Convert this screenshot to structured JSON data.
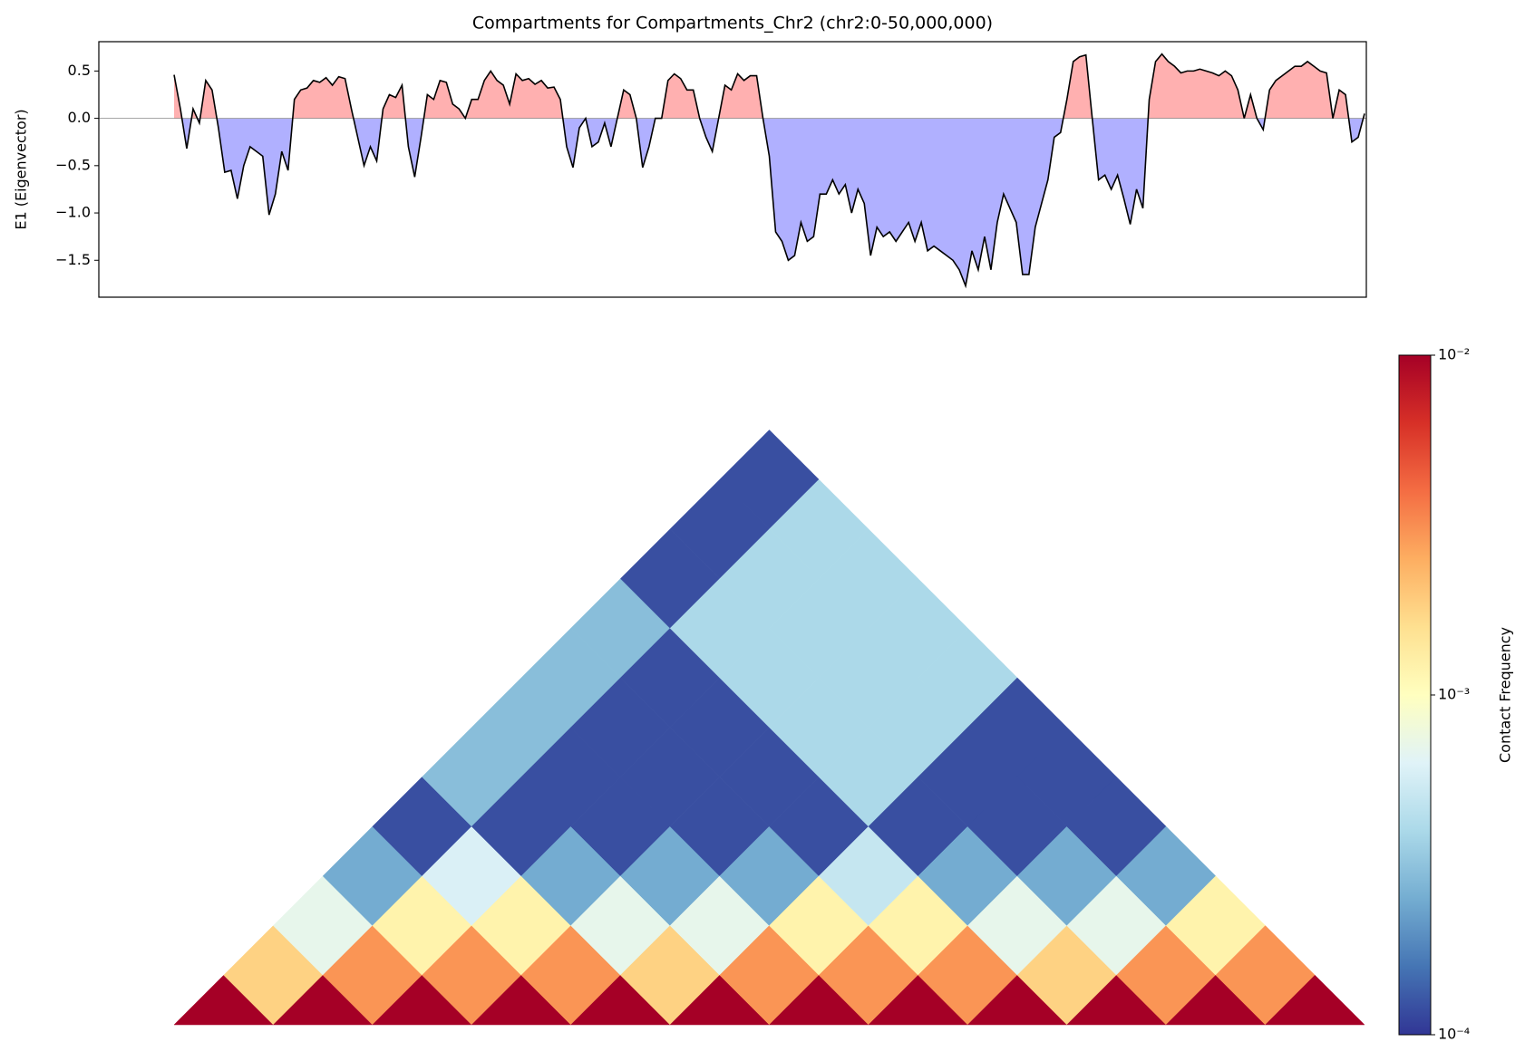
{
  "chart_data": [
    {
      "type": "area",
      "title": "Compartments for Compartments_Chr2 (chr2:0-50,000,000)",
      "y_label": "E1 (Eigenvector)",
      "color": "#000000",
      "pos_color": "#ffb0b0",
      "neg_color": "#b0b0ff",
      "ylim": [
        -1.89,
        0.81
      ],
      "yticks": [
        0.5,
        {
          "value": 0,
          "label": "0.0"
        },
        {
          "value": -0.5,
          "label": "−0.5"
        },
        {
          "value": -1,
          "label": "−1.0"
        },
        {
          "value": -1.5,
          "label": "−1.5"
        }
      ],
      "values": [
        0.46,
        0.1,
        -0.32,
        0.1,
        -0.05,
        0.4,
        0.3,
        -0.1,
        -0.57,
        -0.55,
        -0.85,
        -0.5,
        -0.3,
        -0.35,
        -0.4,
        -1.02,
        -0.8,
        -0.35,
        -0.55,
        0.2,
        0.3,
        0.32,
        0.4,
        0.38,
        0.43,
        0.35,
        0.44,
        0.42,
        0.1,
        -0.2,
        -0.5,
        -0.3,
        -0.45,
        0.1,
        0.25,
        0.22,
        0.35,
        -0.3,
        -0.62,
        -0.2,
        0.25,
        0.2,
        0.4,
        0.38,
        0.15,
        0.1,
        0.0,
        0.2,
        0.2,
        0.4,
        0.5,
        0.4,
        0.35,
        0.15,
        0.47,
        0.4,
        0.42,
        0.36,
        0.4,
        0.32,
        0.33,
        0.2,
        -0.3,
        -0.52,
        -0.1,
        0.0,
        -0.3,
        -0.25,
        -0.05,
        -0.3,
        0.0,
        0.3,
        0.25,
        0.0,
        -0.52,
        -0.3,
        0.0,
        0.0,
        0.4,
        0.47,
        0.42,
        0.3,
        0.3,
        0.0,
        -0.2,
        -0.35,
        0.0,
        0.35,
        0.3,
        0.47,
        0.4,
        0.45,
        0.45,
        0.0,
        -0.4,
        -1.2,
        -1.3,
        -1.5,
        -1.45,
        -1.1,
        -1.3,
        -1.25,
        -0.8,
        -0.8,
        -0.65,
        -0.8,
        -0.7,
        -1.0,
        -0.75,
        -0.9,
        -1.45,
        -1.15,
        -1.25,
        -1.2,
        -1.3,
        -1.2,
        -1.1,
        -1.3,
        -1.1,
        -1.4,
        -1.35,
        -1.4,
        -1.45,
        -1.5,
        -1.6,
        -1.77,
        -1.4,
        -1.6,
        -1.25,
        -1.6,
        -1.1,
        -0.8,
        -0.95,
        -1.1,
        -1.65,
        -1.65,
        -1.15,
        -0.9,
        -0.65,
        -0.2,
        -0.15,
        0.2,
        0.6,
        0.65,
        0.67,
        0.0,
        -0.65,
        -0.6,
        -0.75,
        -0.6,
        -0.85,
        -1.12,
        -0.75,
        -0.95,
        0.2,
        0.6,
        0.68,
        0.6,
        0.55,
        0.48,
        0.5,
        0.5,
        0.52,
        0.5,
        0.48,
        0.45,
        0.5,
        0.45,
        0.3,
        0.0,
        0.25,
        0.0,
        -0.12,
        0.3,
        0.4,
        0.45,
        0.5,
        0.55,
        0.55,
        0.6,
        0.55,
        0.5,
        0.48,
        0.0,
        0.3,
        0.25,
        -0.25,
        -0.2,
        0.05
      ]
    },
    {
      "type": "heatmap",
      "colorbar_label": "Contact Frequency",
      "log": true,
      "zlim": [
        0.0001,
        0.01
      ],
      "zticks": [
        {
          "value": 0.01,
          "label": "10⁻²"
        },
        {
          "value": 0.001,
          "label": "10⁻³"
        },
        {
          "value": 0.0001,
          "label": "10⁻⁴"
        }
      ],
      "colormap": [
        "#313695",
        "#4575b4",
        "#74add1",
        "#abd9e9",
        "#e0f3f8",
        "#ffffbf",
        "#fee090",
        "#fdae61",
        "#f46d43",
        "#d73027",
        "#a50026"
      ],
      "matrix": [
        [
          0.01,
          0.0018,
          0.0007,
          0.00025,
          0.00012,
          0.0003,
          0.0003,
          0.0003,
          0.0003,
          0.00012,
          0.00012,
          0.00012
        ],
        [
          0.01,
          0.003,
          0.0012,
          0.0006,
          0.00012,
          0.00012,
          0.00012,
          0.00012,
          0.0004,
          0.0004,
          0.0004
        ],
        [
          0.01,
          0.003,
          0.0012,
          0.00025,
          0.00012,
          0.00012,
          0.00012,
          0.0004,
          0.0004,
          0.0004
        ],
        [
          0.01,
          0.003,
          0.0007,
          0.00025,
          0.00012,
          0.00012,
          0.0004,
          0.0004,
          0.0004
        ],
        [
          0.01,
          0.0018,
          0.0007,
          0.00025,
          0.00012,
          0.0004,
          0.0004,
          0.0004
        ],
        [
          0.01,
          0.003,
          0.0012,
          0.0005,
          0.00012,
          0.00012,
          0.00012
        ],
        [
          0.01,
          0.003,
          0.0012,
          0.00025,
          0.00012,
          0.00012
        ],
        [
          0.01,
          0.003,
          0.0007,
          0.00025,
          0.00012
        ],
        [
          0.01,
          0.0018,
          0.0007,
          0.00025
        ],
        [
          0.01,
          0.003,
          0.0012
        ],
        [
          0.01,
          0.003
        ],
        [
          0.01
        ]
      ]
    }
  ]
}
